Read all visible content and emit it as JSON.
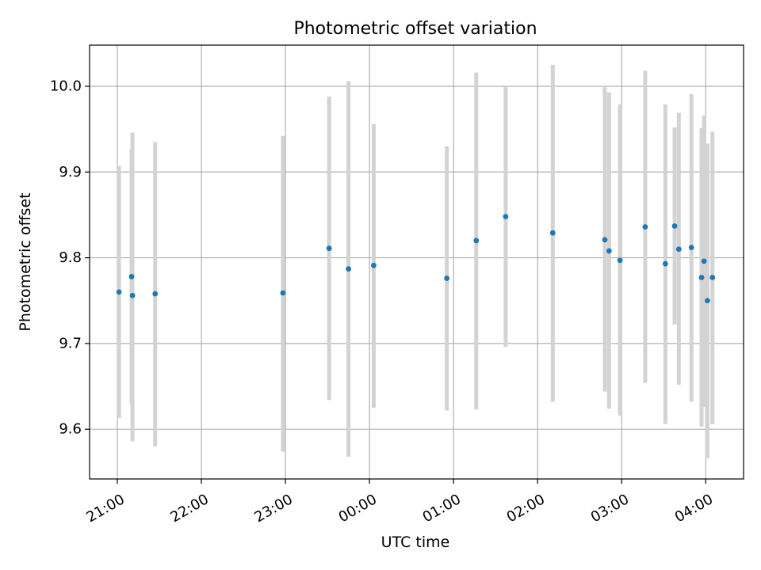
{
  "chart_data": {
    "type": "scatter",
    "title": "Photometric offset variation",
    "xlabel": "UTC time",
    "ylabel": "Photometric offset",
    "x_unit": "hours since 21:00 UTC",
    "xlim": [
      -0.33,
      7.45
    ],
    "ylim": [
      9.542,
      10.048
    ],
    "xticks": [
      {
        "value": 0,
        "label": "21:00"
      },
      {
        "value": 1,
        "label": "22:00"
      },
      {
        "value": 2,
        "label": "23:00"
      },
      {
        "value": 3,
        "label": "00:00"
      },
      {
        "value": 4,
        "label": "01:00"
      },
      {
        "value": 5,
        "label": "02:00"
      },
      {
        "value": 6,
        "label": "03:00"
      },
      {
        "value": 7,
        "label": "04:00"
      }
    ],
    "yticks": [
      {
        "value": 9.6,
        "label": "9.6"
      },
      {
        "value": 9.7,
        "label": "9.7"
      },
      {
        "value": 9.8,
        "label": "9.8"
      },
      {
        "value": 9.9,
        "label": "9.9"
      },
      {
        "value": 10.0,
        "label": "10.0"
      }
    ],
    "grid": true,
    "point_color": "#1f77b4",
    "errorbar_color": "#d3d3d3",
    "series": [
      {
        "points": [
          {
            "x": 0.02,
            "y": 9.76,
            "lo": 9.613,
            "hi": 9.907
          },
          {
            "x": 0.17,
            "y": 9.778,
            "lo": 9.63,
            "hi": 9.927
          },
          {
            "x": 0.18,
            "y": 9.756,
            "lo": 9.586,
            "hi": 9.946
          },
          {
            "x": 0.45,
            "y": 9.758,
            "lo": 9.58,
            "hi": 9.935
          },
          {
            "x": 1.97,
            "y": 9.759,
            "lo": 9.574,
            "hi": 9.942
          },
          {
            "x": 2.52,
            "y": 9.811,
            "lo": 9.634,
            "hi": 9.988
          },
          {
            "x": 2.75,
            "y": 9.787,
            "lo": 9.568,
            "hi": 10.006
          },
          {
            "x": 3.05,
            "y": 9.791,
            "lo": 9.625,
            "hi": 9.956
          },
          {
            "x": 3.92,
            "y": 9.776,
            "lo": 9.622,
            "hi": 9.93
          },
          {
            "x": 4.27,
            "y": 9.82,
            "lo": 9.623,
            "hi": 10.016
          },
          {
            "x": 4.62,
            "y": 9.848,
            "lo": 9.696,
            "hi": 9.999
          },
          {
            "x": 5.18,
            "y": 9.829,
            "lo": 9.632,
            "hi": 10.025
          },
          {
            "x": 5.8,
            "y": 9.821,
            "lo": 9.644,
            "hi": 9.999
          },
          {
            "x": 5.85,
            "y": 9.808,
            "lo": 9.624,
            "hi": 9.993
          },
          {
            "x": 5.98,
            "y": 9.797,
            "lo": 9.616,
            "hi": 9.979
          },
          {
            "x": 6.28,
            "y": 9.836,
            "lo": 9.654,
            "hi": 10.018
          },
          {
            "x": 6.52,
            "y": 9.793,
            "lo": 9.606,
            "hi": 9.979
          },
          {
            "x": 6.63,
            "y": 9.837,
            "lo": 9.722,
            "hi": 9.952
          },
          {
            "x": 6.68,
            "y": 9.81,
            "lo": 9.652,
            "hi": 9.969
          },
          {
            "x": 6.83,
            "y": 9.812,
            "lo": 9.632,
            "hi": 9.991
          },
          {
            "x": 6.95,
            "y": 9.777,
            "lo": 9.603,
            "hi": 9.951
          },
          {
            "x": 6.98,
            "y": 9.796,
            "lo": 9.626,
            "hi": 9.966
          },
          {
            "x": 7.02,
            "y": 9.75,
            "lo": 9.566,
            "hi": 9.933
          },
          {
            "x": 7.08,
            "y": 9.777,
            "lo": 9.606,
            "hi": 9.947
          }
        ]
      }
    ]
  }
}
